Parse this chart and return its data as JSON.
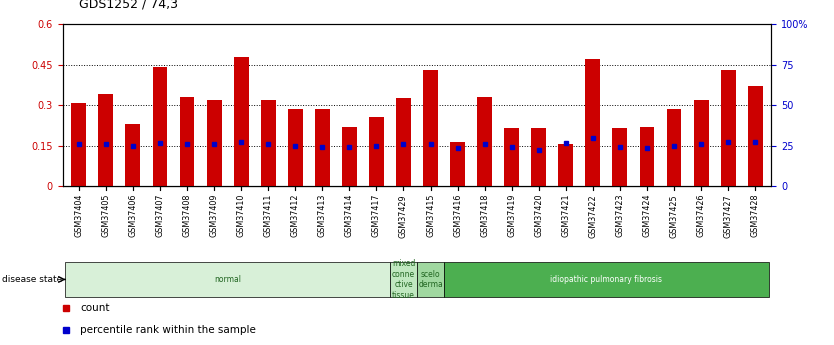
{
  "title": "GDS1252 / 74,3",
  "samples": [
    "GSM37404",
    "GSM37405",
    "GSM37406",
    "GSM37407",
    "GSM37408",
    "GSM37409",
    "GSM37410",
    "GSM37411",
    "GSM37412",
    "GSM37413",
    "GSM37414",
    "GSM37417",
    "GSM37429",
    "GSM37415",
    "GSM37416",
    "GSM37418",
    "GSM37419",
    "GSM37420",
    "GSM37421",
    "GSM37422",
    "GSM37423",
    "GSM37424",
    "GSM37425",
    "GSM37426",
    "GSM37427",
    "GSM37428"
  ],
  "bar_heights": [
    0.31,
    0.34,
    0.23,
    0.44,
    0.33,
    0.32,
    0.48,
    0.32,
    0.285,
    0.285,
    0.22,
    0.255,
    0.325,
    0.43,
    0.165,
    0.33,
    0.215,
    0.215,
    0.155,
    0.47,
    0.215,
    0.22,
    0.285,
    0.32,
    0.43,
    0.37
  ],
  "blue_dot_heights": [
    0.155,
    0.155,
    0.15,
    0.16,
    0.155,
    0.155,
    0.165,
    0.155,
    0.148,
    0.145,
    0.145,
    0.15,
    0.155,
    0.155,
    0.14,
    0.155,
    0.145,
    0.135,
    0.16,
    0.18,
    0.145,
    0.14,
    0.15,
    0.155,
    0.165,
    0.165
  ],
  "disease_groups": [
    {
      "label": "normal",
      "start": 0,
      "end": 12,
      "color": "#d8f0d8",
      "text_color": "#226622"
    },
    {
      "label": "mixed\nconne\nctive\ntissue",
      "start": 12,
      "end": 13,
      "color": "#c0e8c0",
      "text_color": "#226622"
    },
    {
      "label": "scelo\nderma",
      "start": 13,
      "end": 14,
      "color": "#a0d8a0",
      "text_color": "#226622"
    },
    {
      "label": "idiopathic pulmonary fibrosis",
      "start": 14,
      "end": 26,
      "color": "#4caf50",
      "text_color": "white"
    }
  ],
  "ylim": [
    0,
    0.6
  ],
  "yticks_left": [
    0,
    0.15,
    0.3,
    0.45,
    0.6
  ],
  "ytick_labels_left": [
    "0",
    "0.15",
    "0.3",
    "0.45",
    "0.6"
  ],
  "yticks_right": [
    0,
    25,
    50,
    75,
    100
  ],
  "ytick_labels_right": [
    "0",
    "25",
    "50",
    "75",
    "100%"
  ],
  "bar_color": "#cc0000",
  "dot_color": "#0000cc",
  "legend_items": [
    {
      "label": "count",
      "color": "#cc0000"
    },
    {
      "label": "percentile rank within the sample",
      "color": "#0000cc"
    }
  ]
}
